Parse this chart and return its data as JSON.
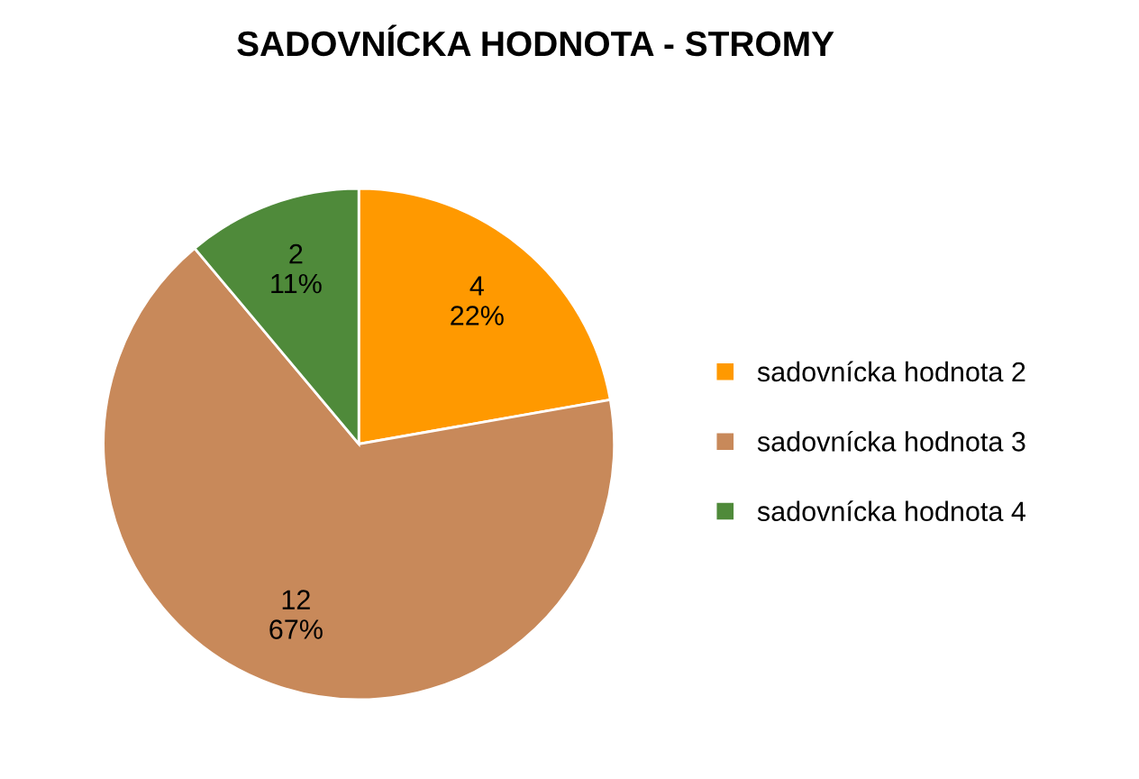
{
  "chart_data": {
    "type": "pie",
    "title": "SADOVNÍCKA HODNOTA - STROMY",
    "categories": [
      "sadovnícka hodnota 2",
      "sadovnícka hodnota 3",
      "sadovnícka hodnota 4"
    ],
    "values": [
      4,
      12,
      2
    ],
    "colors": [
      "#ff9900",
      "#c8895a",
      "#4f8a3a"
    ],
    "value_labels": [
      "4\n22%",
      "12\n67%",
      "2\n11%"
    ],
    "legend": "right"
  }
}
